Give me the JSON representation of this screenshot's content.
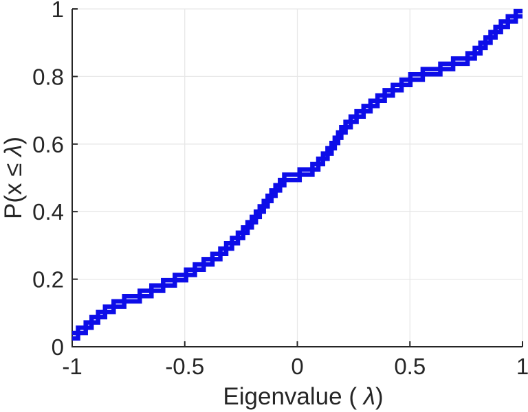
{
  "chart_data": {
    "type": "line",
    "subtype": "ecdf-staircase",
    "title": "",
    "xlabel_parts": [
      {
        "text": "Eigenvalue (  ",
        "italic": false
      },
      {
        "text": "λ",
        "italic": true
      },
      {
        "text": ")",
        "italic": false
      }
    ],
    "ylabel_parts": [
      {
        "text": "P(x ≤ ",
        "italic": false
      },
      {
        "text": "λ",
        "italic": true
      },
      {
        "text": ")",
        "italic": false
      }
    ],
    "xlabel_text": "Eigenvalue (  λ)",
    "ylabel_text": "P(x ≤ λ)",
    "xlim": [
      -1,
      1
    ],
    "ylim": [
      0,
      1
    ],
    "x_ticks": [
      -1,
      -0.5,
      0,
      0.5,
      1
    ],
    "x_tick_labels": [
      "-1",
      "-0.5",
      "0",
      "0.5",
      "1"
    ],
    "y_ticks": [
      0,
      0.2,
      0.4,
      0.6,
      0.8,
      1
    ],
    "y_tick_labels": [
      "0",
      "0.2",
      "0.4",
      "0.6",
      "0.8",
      "1"
    ],
    "grid": true,
    "legend": null,
    "colors": {
      "line": "#0d0de8",
      "axis": "#262626",
      "grid": "#e7e7e7",
      "tick_label": "#262626",
      "background": "#ffffff"
    },
    "line_width": 6.5,
    "series": [
      {
        "name": "ecdf-curve-1",
        "start": [
          -1,
          0.025
        ],
        "end_x": 1,
        "step_height": 0.03125,
        "steps": [
          [
            -0.974,
            0.0563
          ],
          [
            -0.914,
            0.0875
          ],
          [
            -0.854,
            0.1188
          ],
          [
            -0.769,
            0.15
          ],
          [
            -0.648,
            0.1813
          ],
          [
            -0.544,
            0.2125
          ],
          [
            -0.455,
            0.2438
          ],
          [
            -0.377,
            0.275
          ],
          [
            -0.316,
            0.3063
          ],
          [
            -0.264,
            0.3375
          ],
          [
            -0.221,
            0.3688
          ],
          [
            -0.184,
            0.4
          ],
          [
            -0.149,
            0.4313
          ],
          [
            -0.115,
            0.4625
          ],
          [
            -0.077,
            0.4938
          ],
          [
            0.01,
            0.525
          ],
          [
            0.093,
            0.5563
          ],
          [
            0.134,
            0.5875
          ],
          [
            0.166,
            0.6188
          ],
          [
            0.195,
            0.65
          ],
          [
            0.237,
            0.6813
          ],
          [
            0.294,
            0.7125
          ],
          [
            0.356,
            0.7438
          ],
          [
            0.424,
            0.775
          ],
          [
            0.502,
            0.8063
          ],
          [
            0.635,
            0.8375
          ],
          [
            0.756,
            0.8688
          ],
          [
            0.813,
            0.9
          ],
          [
            0.858,
            0.9313
          ],
          [
            0.904,
            0.9625
          ],
          [
            0.97,
            0.9938
          ]
        ]
      },
      {
        "name": "ecdf-curve-2",
        "start": [
          -1,
          0.0406
        ],
        "end_x": 1,
        "step_height": 0.03125,
        "steps": [
          [
            -0.94,
            0.0719
          ],
          [
            -0.885,
            0.1031
          ],
          [
            -0.816,
            0.1344
          ],
          [
            -0.7,
            0.1656
          ],
          [
            -0.596,
            0.1969
          ],
          [
            -0.494,
            0.2281
          ],
          [
            -0.416,
            0.2594
          ],
          [
            -0.342,
            0.2906
          ],
          [
            -0.29,
            0.3219
          ],
          [
            -0.241,
            0.3531
          ],
          [
            -0.202,
            0.3844
          ],
          [
            -0.167,
            0.4156
          ],
          [
            -0.132,
            0.4469
          ],
          [
            -0.097,
            0.4781
          ],
          [
            -0.058,
            0.5094
          ],
          [
            0.067,
            0.5406
          ],
          [
            0.114,
            0.5719
          ],
          [
            0.152,
            0.6031
          ],
          [
            0.181,
            0.6344
          ],
          [
            0.214,
            0.6656
          ],
          [
            0.263,
            0.6969
          ],
          [
            0.325,
            0.7281
          ],
          [
            0.388,
            0.7594
          ],
          [
            0.463,
            0.7906
          ],
          [
            0.557,
            0.8219
          ],
          [
            0.692,
            0.8531
          ],
          [
            0.788,
            0.8844
          ],
          [
            0.836,
            0.9156
          ],
          [
            0.88,
            0.9469
          ],
          [
            0.935,
            0.9781
          ]
        ]
      }
    ]
  }
}
